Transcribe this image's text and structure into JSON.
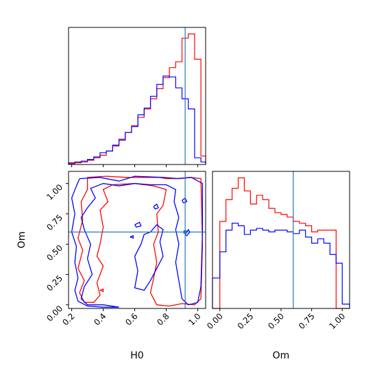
{
  "chart_data": {
    "type": "corner",
    "parameters": [
      "H0",
      "Om"
    ],
    "truths": {
      "H0": 0.92,
      "Om": 0.6
    },
    "colors": {
      "series_a": "#ff0000",
      "series_b": "#0000ff",
      "truth": "#1f77b4",
      "axes": "#000000"
    },
    "panels": [
      {
        "id": "H0-marginal",
        "type": "step-histogram",
        "xlim": [
          0.18,
          1.05
        ],
        "bins": [
          0.18,
          0.22,
          0.26,
          0.3,
          0.34,
          0.38,
          0.42,
          0.46,
          0.5,
          0.54,
          0.58,
          0.62,
          0.66,
          0.7,
          0.74,
          0.78,
          0.82,
          0.86,
          0.9,
          0.94,
          0.98,
          1.02,
          1.05
        ],
        "series": [
          {
            "color_key": "series_a",
            "values": [
              1,
              2,
              3,
              5,
              8,
              11,
              16,
              22,
              30,
              38,
              46,
              56,
              66,
              78,
              90,
              103,
              115,
              122,
              150,
              155,
              125,
              10
            ]
          },
          {
            "color_key": "series_b",
            "values": [
              2,
              3,
              4,
              6,
              9,
              14,
              16,
              23,
              29,
              38,
              45,
              59,
              67,
              81,
              95,
              105,
              104,
              91,
              78,
              66,
              8,
              3
            ]
          }
        ],
        "xticks": [
          0.2,
          0.4,
          0.6,
          0.8,
          1.0
        ],
        "show_tick_labels": false
      },
      {
        "id": "H0-Om-joint",
        "type": "contour",
        "xlim": [
          0.18,
          1.05
        ],
        "ylim": [
          -0.03,
          1.1
        ],
        "xticks": [
          0.2,
          0.4,
          0.6,
          0.8,
          1.0
        ],
        "xtick_labels": [
          "0.2",
          "0.4",
          "0.6",
          "0.8",
          "1.0"
        ],
        "yticks": [
          0.0,
          0.25,
          0.5,
          0.75,
          1.0
        ],
        "ytick_labels": [
          "0.00",
          "0.25",
          "0.50",
          "0.75",
          "1.00"
        ],
        "xlabel": "H0",
        "ylabel": "Om",
        "contours": [
          {
            "color_key": "series_a",
            "points": [
              [
                0.3,
                1.05
              ],
              [
                0.42,
                1.06
              ],
              [
                0.55,
                1.05
              ],
              [
                0.68,
                1.05
              ],
              [
                0.76,
                1.05
              ],
              [
                0.8,
                1.04
              ],
              [
                0.86,
                1.04
              ],
              [
                0.95,
                1.05
              ],
              [
                1.02,
                1.04
              ],
              [
                1.03,
                0.5
              ],
              [
                1.02,
                0.05
              ],
              [
                0.98,
                0.0
              ],
              [
                0.9,
                0.01
              ],
              [
                0.82,
                -0.01
              ],
              [
                0.74,
                0.0
              ],
              [
                0.7,
                0.1
              ],
              [
                0.72,
                0.22
              ],
              [
                0.74,
                0.35
              ],
              [
                0.72,
                0.5
              ],
              [
                0.75,
                0.6
              ],
              [
                0.74,
                0.75
              ],
              [
                0.78,
                0.82
              ],
              [
                0.8,
                0.95
              ],
              [
                0.72,
                0.98
              ],
              [
                0.6,
                1.0
              ],
              [
                0.46,
                0.99
              ],
              [
                0.4,
                0.95
              ],
              [
                0.43,
                0.85
              ],
              [
                0.38,
                0.78
              ],
              [
                0.4,
                0.64
              ],
              [
                0.38,
                0.5
              ],
              [
                0.36,
                0.4
              ],
              [
                0.4,
                0.32
              ],
              [
                0.36,
                0.18
              ],
              [
                0.38,
                0.08
              ],
              [
                0.34,
                0.02
              ],
              [
                0.28,
                0.02
              ],
              [
                0.25,
                0.1
              ],
              [
                0.28,
                0.2
              ],
              [
                0.24,
                0.3
              ],
              [
                0.27,
                0.45
              ],
              [
                0.24,
                0.55
              ],
              [
                0.27,
                0.7
              ],
              [
                0.26,
                0.85
              ],
              [
                0.3,
                0.95
              ],
              [
                0.3,
                1.05
              ]
            ]
          },
          {
            "color_key": "series_a",
            "points": [
              [
                0.38,
                0.12
              ],
              [
                0.4,
                0.13
              ],
              [
                0.4,
                0.11
              ],
              [
                0.38,
                0.12
              ]
            ]
          },
          {
            "color_key": "series_b",
            "points": [
              [
                0.25,
                1.04
              ],
              [
                0.38,
                1.05
              ],
              [
                0.5,
                1.02
              ],
              [
                0.6,
                1.06
              ],
              [
                0.78,
                1.05
              ],
              [
                0.88,
                1.04
              ],
              [
                0.96,
                1.05
              ],
              [
                1.03,
                1.0
              ],
              [
                1.03,
                0.6
              ],
              [
                1.02,
                0.15
              ],
              [
                1.0,
                0.02
              ],
              [
                0.94,
                0.0
              ],
              [
                0.9,
                0.05
              ],
              [
                0.88,
                0.2
              ],
              [
                0.86,
                0.35
              ],
              [
                0.88,
                0.5
              ],
              [
                0.86,
                0.62
              ],
              [
                0.88,
                0.72
              ],
              [
                0.85,
                0.85
              ],
              [
                0.86,
                0.95
              ],
              [
                0.8,
                0.99
              ],
              [
                0.7,
                0.99
              ],
              [
                0.6,
                1.0
              ],
              [
                0.5,
                0.98
              ],
              [
                0.4,
                1.0
              ],
              [
                0.32,
                0.96
              ],
              [
                0.35,
                0.88
              ],
              [
                0.3,
                0.8
              ],
              [
                0.26,
                0.72
              ],
              [
                0.28,
                0.62
              ],
              [
                0.32,
                0.5
              ],
              [
                0.3,
                0.38
              ],
              [
                0.33,
                0.25
              ],
              [
                0.28,
                0.15
              ],
              [
                0.26,
                0.05
              ],
              [
                0.3,
                0.0
              ],
              [
                0.4,
                0.0
              ],
              [
                0.5,
                -0.02
              ],
              [
                0.4,
                -0.02
              ],
              [
                0.3,
                -0.01
              ],
              [
                0.24,
                0.03
              ],
              [
                0.22,
                0.12
              ],
              [
                0.24,
                0.22
              ],
              [
                0.22,
                0.35
              ],
              [
                0.23,
                0.48
              ],
              [
                0.2,
                0.6
              ],
              [
                0.22,
                0.75
              ],
              [
                0.2,
                0.88
              ],
              [
                0.23,
                0.98
              ],
              [
                0.25,
                1.04
              ]
            ]
          },
          {
            "color_key": "series_b",
            "points": [
              [
                0.7,
                0.6
              ],
              [
                0.74,
                0.66
              ],
              [
                0.78,
                0.62
              ],
              [
                0.76,
                0.52
              ],
              [
                0.78,
                0.4
              ],
              [
                0.74,
                0.3
              ],
              [
                0.7,
                0.2
              ],
              [
                0.66,
                0.12
              ],
              [
                0.6,
                0.14
              ],
              [
                0.62,
                0.28
              ],
              [
                0.6,
                0.4
              ],
              [
                0.64,
                0.5
              ],
              [
                0.66,
                0.58
              ],
              [
                0.7,
                0.6
              ]
            ]
          },
          {
            "color_key": "series_b",
            "points": [
              [
                0.6,
                0.66
              ],
              [
                0.63,
                0.68
              ],
              [
                0.64,
                0.65
              ],
              [
                0.61,
                0.64
              ],
              [
                0.6,
                0.66
              ]
            ]
          },
          {
            "color_key": "series_b",
            "points": [
              [
                0.72,
                0.81
              ],
              [
                0.74,
                0.83
              ],
              [
                0.75,
                0.8
              ],
              [
                0.73,
                0.79
              ],
              [
                0.72,
                0.81
              ]
            ]
          },
          {
            "color_key": "series_b",
            "points": [
              [
                0.57,
                0.56
              ],
              [
                0.59,
                0.57
              ],
              [
                0.59,
                0.55
              ],
              [
                0.57,
                0.56
              ]
            ]
          },
          {
            "color_key": "series_b",
            "points": [
              [
                0.92,
                0.58
              ],
              [
                0.94,
                0.62
              ],
              [
                0.95,
                0.6
              ],
              [
                0.93,
                0.57
              ],
              [
                0.92,
                0.58
              ]
            ]
          },
          {
            "color_key": "series_b",
            "points": [
              [
                0.9,
                0.86
              ],
              [
                0.92,
                0.88
              ],
              [
                0.93,
                0.85
              ],
              [
                0.91,
                0.84
              ],
              [
                0.9,
                0.86
              ]
            ]
          }
        ]
      },
      {
        "id": "Om-marginal",
        "type": "step-histogram",
        "xlim": [
          -0.06,
          1.06
        ],
        "bins": [
          -0.06,
          0.0,
          0.05,
          0.1,
          0.15,
          0.2,
          0.25,
          0.3,
          0.35,
          0.4,
          0.45,
          0.5,
          0.55,
          0.6,
          0.65,
          0.7,
          0.75,
          0.8,
          0.85,
          0.9,
          0.95,
          1.0,
          1.06
        ],
        "series": [
          {
            "color_key": "series_a",
            "values": [
              0,
              100,
              125,
              138,
              150,
              135,
              120,
              130,
              125,
              115,
              110,
              108,
              105,
              100,
              98,
              95,
              88,
              90,
              90,
              90,
              0,
              0
            ]
          },
          {
            "color_key": "series_b",
            "values": [
              35,
              65,
              90,
              98,
              95,
              85,
              90,
              92,
              90,
              88,
              90,
              90,
              88,
              86,
              90,
              82,
              75,
              80,
              75,
              62,
              52,
              5
            ]
          }
        ],
        "xticks": [
          0.0,
          0.25,
          0.5,
          0.75,
          1.0
        ],
        "xtick_labels": [
          "0.00",
          "0.25",
          "0.50",
          "0.75",
          "1.00"
        ],
        "xlabel": "Om"
      }
    ]
  }
}
